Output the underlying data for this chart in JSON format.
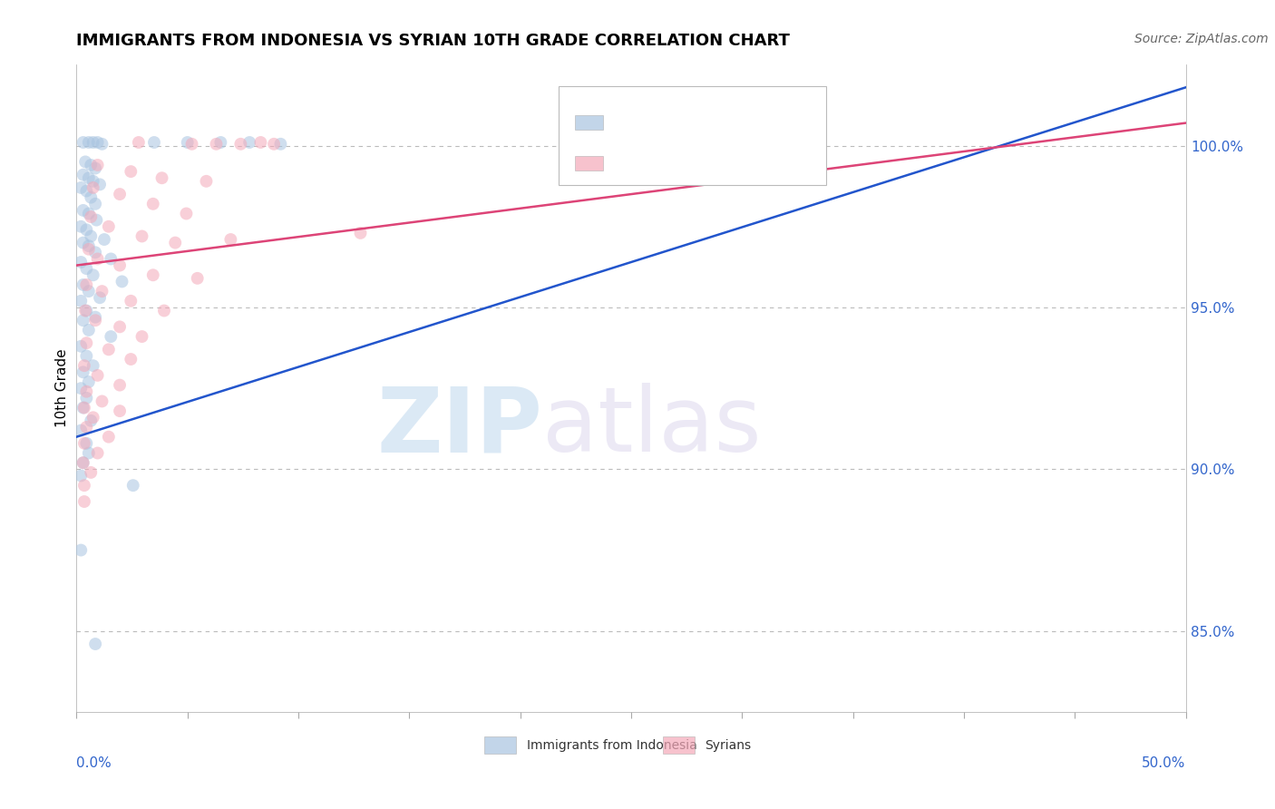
{
  "title": "IMMIGRANTS FROM INDONESIA VS SYRIAN 10TH GRADE CORRELATION CHART",
  "source": "Source: ZipAtlas.com",
  "ylabel": "10th Grade",
  "y_ticks": [
    85.0,
    90.0,
    95.0,
    100.0
  ],
  "y_tick_labels": [
    "85.0%",
    "90.0%",
    "95.0%",
    "100.0%"
  ],
  "xlim": [
    0.0,
    50.0
  ],
  "ylim": [
    82.5,
    102.5
  ],
  "legend_label1": "Immigrants from Indonesia",
  "legend_label2": "Syrians",
  "blue_color": "#A8C4E0",
  "pink_color": "#F4A8B8",
  "blue_line_color": "#2255CC",
  "pink_line_color": "#DD4477",
  "tick_color": "#3366CC",
  "blue_scatter": [
    [
      0.3,
      100.1
    ],
    [
      0.55,
      100.1
    ],
    [
      0.75,
      100.1
    ],
    [
      0.95,
      100.1
    ],
    [
      1.15,
      100.05
    ],
    [
      3.5,
      100.1
    ],
    [
      5.0,
      100.1
    ],
    [
      6.5,
      100.1
    ],
    [
      7.8,
      100.1
    ],
    [
      9.2,
      100.05
    ],
    [
      0.4,
      99.5
    ],
    [
      0.65,
      99.4
    ],
    [
      0.85,
      99.3
    ],
    [
      0.3,
      99.1
    ],
    [
      0.55,
      99.0
    ],
    [
      0.75,
      98.9
    ],
    [
      1.05,
      98.8
    ],
    [
      0.2,
      98.7
    ],
    [
      0.45,
      98.6
    ],
    [
      0.65,
      98.4
    ],
    [
      0.85,
      98.2
    ],
    [
      0.3,
      98.0
    ],
    [
      0.55,
      97.9
    ],
    [
      0.9,
      97.7
    ],
    [
      0.2,
      97.5
    ],
    [
      0.45,
      97.4
    ],
    [
      0.65,
      97.2
    ],
    [
      1.25,
      97.1
    ],
    [
      0.3,
      97.0
    ],
    [
      0.55,
      96.9
    ],
    [
      0.85,
      96.7
    ],
    [
      1.55,
      96.5
    ],
    [
      0.2,
      96.4
    ],
    [
      0.45,
      96.2
    ],
    [
      0.75,
      96.0
    ],
    [
      2.05,
      95.8
    ],
    [
      0.3,
      95.7
    ],
    [
      0.55,
      95.5
    ],
    [
      1.05,
      95.3
    ],
    [
      0.2,
      95.2
    ],
    [
      0.45,
      94.9
    ],
    [
      0.85,
      94.7
    ],
    [
      0.3,
      94.6
    ],
    [
      0.55,
      94.3
    ],
    [
      1.55,
      94.1
    ],
    [
      0.2,
      93.8
    ],
    [
      0.45,
      93.5
    ],
    [
      0.75,
      93.2
    ],
    [
      0.3,
      93.0
    ],
    [
      0.55,
      92.7
    ],
    [
      0.2,
      92.5
    ],
    [
      0.45,
      92.2
    ],
    [
      0.3,
      91.9
    ],
    [
      0.65,
      91.5
    ],
    [
      0.2,
      91.2
    ],
    [
      0.45,
      90.8
    ],
    [
      0.55,
      90.5
    ],
    [
      0.3,
      90.2
    ],
    [
      0.2,
      89.8
    ],
    [
      2.55,
      89.5
    ],
    [
      0.2,
      87.5
    ],
    [
      0.85,
      84.6
    ]
  ],
  "pink_scatter": [
    [
      2.8,
      100.1
    ],
    [
      5.2,
      100.05
    ],
    [
      6.3,
      100.05
    ],
    [
      7.4,
      100.05
    ],
    [
      8.3,
      100.1
    ],
    [
      8.9,
      100.05
    ],
    [
      0.95,
      99.4
    ],
    [
      2.45,
      99.2
    ],
    [
      3.85,
      99.0
    ],
    [
      5.85,
      98.9
    ],
    [
      0.75,
      98.7
    ],
    [
      1.95,
      98.5
    ],
    [
      3.45,
      98.2
    ],
    [
      4.95,
      97.9
    ],
    [
      0.65,
      97.8
    ],
    [
      1.45,
      97.5
    ],
    [
      2.95,
      97.2
    ],
    [
      4.45,
      97.0
    ],
    [
      6.95,
      97.1
    ],
    [
      0.55,
      96.8
    ],
    [
      0.95,
      96.5
    ],
    [
      1.95,
      96.3
    ],
    [
      3.45,
      96.0
    ],
    [
      5.45,
      95.9
    ],
    [
      0.45,
      95.7
    ],
    [
      1.15,
      95.5
    ],
    [
      2.45,
      95.2
    ],
    [
      3.95,
      94.9
    ],
    [
      0.4,
      94.9
    ],
    [
      0.85,
      94.6
    ],
    [
      1.95,
      94.4
    ],
    [
      2.95,
      94.1
    ],
    [
      0.45,
      93.9
    ],
    [
      1.45,
      93.7
    ],
    [
      2.45,
      93.4
    ],
    [
      0.35,
      93.2
    ],
    [
      0.95,
      92.9
    ],
    [
      1.95,
      92.6
    ],
    [
      0.45,
      92.4
    ],
    [
      1.15,
      92.1
    ],
    [
      0.35,
      91.9
    ],
    [
      0.75,
      91.6
    ],
    [
      0.45,
      91.3
    ],
    [
      1.45,
      91.0
    ],
    [
      0.35,
      90.8
    ],
    [
      0.95,
      90.5
    ],
    [
      0.3,
      90.2
    ],
    [
      0.65,
      89.9
    ],
    [
      0.35,
      89.5
    ],
    [
      1.95,
      91.8
    ],
    [
      12.8,
      97.3
    ],
    [
      0.35,
      89.0
    ]
  ],
  "blue_line": [
    [
      0.0,
      91.0
    ],
    [
      50.0,
      101.8
    ]
  ],
  "pink_line": [
    [
      0.0,
      96.3
    ],
    [
      50.0,
      100.7
    ]
  ],
  "watermark_zip": "ZIP",
  "watermark_atlas": "atlas",
  "title_fontsize": 13,
  "tick_label_fontsize": 11,
  "axis_label_fontsize": 11,
  "source_fontsize": 10
}
